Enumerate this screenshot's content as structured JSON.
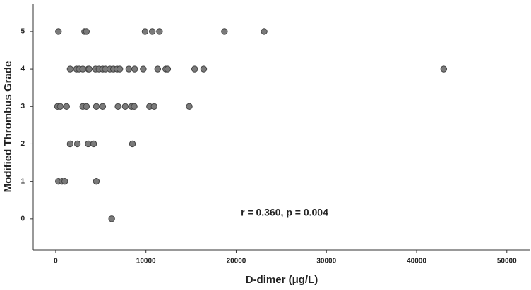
{
  "chart_data": {
    "type": "scatter",
    "x_label": "D-dimer (μg/L)",
    "y_label": "Modified Thrombus Grade",
    "annotation": "r = 0.360, p = 0.004",
    "color": "#7a7a7a",
    "edge_color": "#444444",
    "grid": false,
    "xlim": [
      -2500,
      52600
    ],
    "ylim": [
      -0.83,
      5.75
    ],
    "xticks": [
      0,
      10000,
      20000,
      30000,
      40000,
      50000
    ],
    "yticks": [
      0,
      1,
      2,
      3,
      4,
      5
    ],
    "x": [
      300,
      3200,
      3400,
      9900,
      10700,
      11500,
      18700,
      23100,
      1600,
      2300,
      2600,
      3000,
      3600,
      3700,
      4400,
      4800,
      5200,
      5500,
      6000,
      6400,
      6800,
      7100,
      8100,
      8750,
      9700,
      11300,
      12200,
      12400,
      15400,
      16400,
      43000,
      200,
      500,
      1200,
      3000,
      3400,
      4500,
      5200,
      6900,
      7700,
      8400,
      8700,
      10400,
      10900,
      14800,
      1600,
      2400,
      3600,
      4200,
      8500,
      300,
      700,
      1000,
      4500,
      6200
    ],
    "y": [
      5,
      5,
      5,
      5,
      5,
      5,
      5,
      5,
      4,
      4,
      4,
      4,
      4,
      4,
      4,
      4,
      4,
      4,
      4,
      4,
      4,
      4,
      4,
      4,
      4,
      4,
      4,
      4,
      4,
      4,
      4,
      3,
      3,
      3,
      3,
      3,
      3,
      3,
      3,
      3,
      3,
      3,
      3,
      3,
      3,
      2,
      2,
      2,
      2,
      2,
      1,
      1,
      1,
      1,
      0
    ]
  }
}
